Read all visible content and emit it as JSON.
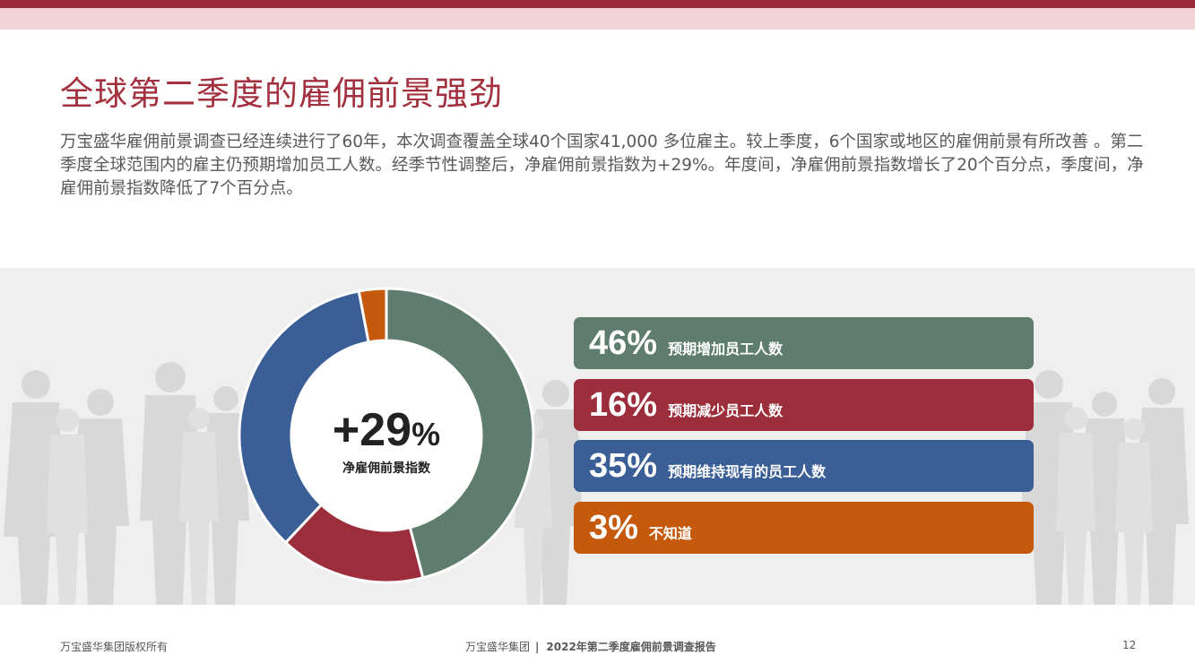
{
  "header": {
    "title": "全球第二季度的雇佣前景强劲"
  },
  "intro": {
    "text": "万宝盛华雇佣前景调查已经连续进行了60年，本次调查覆盖全球40个国家41,000 多位雇主。较上季度，6个国家或地区的雇佣前景有所改善 。第二季度全球范围内的雇主仍预期增加员工人数。经季节性调整后，净雇佣前景指数为+29%。年度间，净雇佣前景指数增长了20个百分点，季度间，净雇佣前景指数降低了7个百分点。"
  },
  "donut": {
    "center_value": "+29",
    "center_unit": "%",
    "center_label": "净雇佣前景指数"
  },
  "chart_data": {
    "type": "pie",
    "subtype": "donut",
    "center_text": "+29%",
    "center_label": "净雇佣前景指数",
    "categories": [
      "预期增加员工人数",
      "预期减少员工人数",
      "预期维持现有的员工人数",
      "不知道"
    ],
    "values": [
      46,
      16,
      35,
      3
    ],
    "value_labels": [
      "46%",
      "16%",
      "35%",
      "3%"
    ],
    "colors": [
      "#5e7d6e",
      "#9c2d3a",
      "#3a5e96",
      "#c55a0c"
    ],
    "legend_placement": "right"
  },
  "legend": [
    {
      "pct": "46%",
      "label": "预期增加员工人数"
    },
    {
      "pct": "16%",
      "label": "预期减少员工人数"
    },
    {
      "pct": "35%",
      "label": "预期维持现有的员工人数"
    },
    {
      "pct": "3%",
      "label": "不知道"
    }
  ],
  "footer": {
    "copyright": "万宝盛华集团版权所有",
    "company": "万宝盛华集团",
    "separator": "|",
    "report": "2022年第二季度雇佣前景调查报告",
    "page": "12"
  },
  "colors": {
    "accent": "#a3303f",
    "top_band": "#f2d4d8",
    "panel": "#efefef"
  },
  "icons": [
    "people-silhouettes-background"
  ]
}
